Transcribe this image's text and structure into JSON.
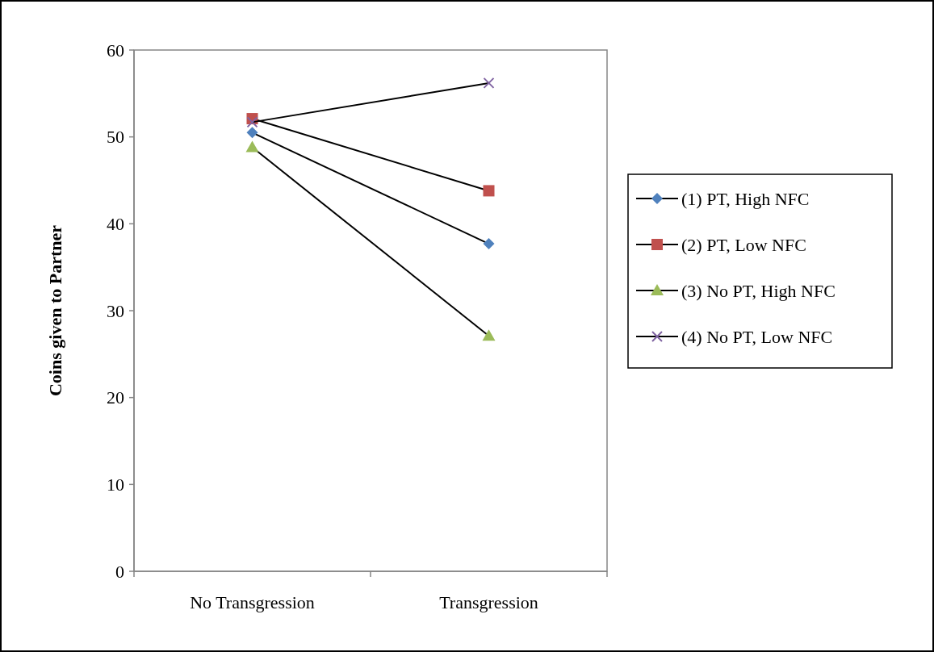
{
  "chart_data": {
    "type": "line",
    "ylabel": "Coins given to Partner",
    "categories": [
      "No Transgression",
      "Transgression"
    ],
    "ylim": [
      0,
      60
    ],
    "yticks": [
      0,
      10,
      20,
      30,
      40,
      50,
      60
    ],
    "grid": false,
    "legend": "right",
    "series": [
      {
        "name": "(1) PT, High NFC",
        "color": "#4f81bd",
        "marker": "diamond",
        "values": [
          50.5,
          37.7
        ]
      },
      {
        "name": "(2) PT, Low NFC",
        "color": "#c0504d",
        "marker": "square",
        "values": [
          52.1,
          43.8
        ]
      },
      {
        "name": "(3) No PT, High NFC",
        "color": "#9bbb59",
        "marker": "triangle",
        "values": [
          48.8,
          27.1
        ]
      },
      {
        "name": "(4) No PT, Low NFC",
        "color": "#8064a2",
        "marker": "cross",
        "values": [
          51.7,
          56.2
        ]
      }
    ]
  }
}
